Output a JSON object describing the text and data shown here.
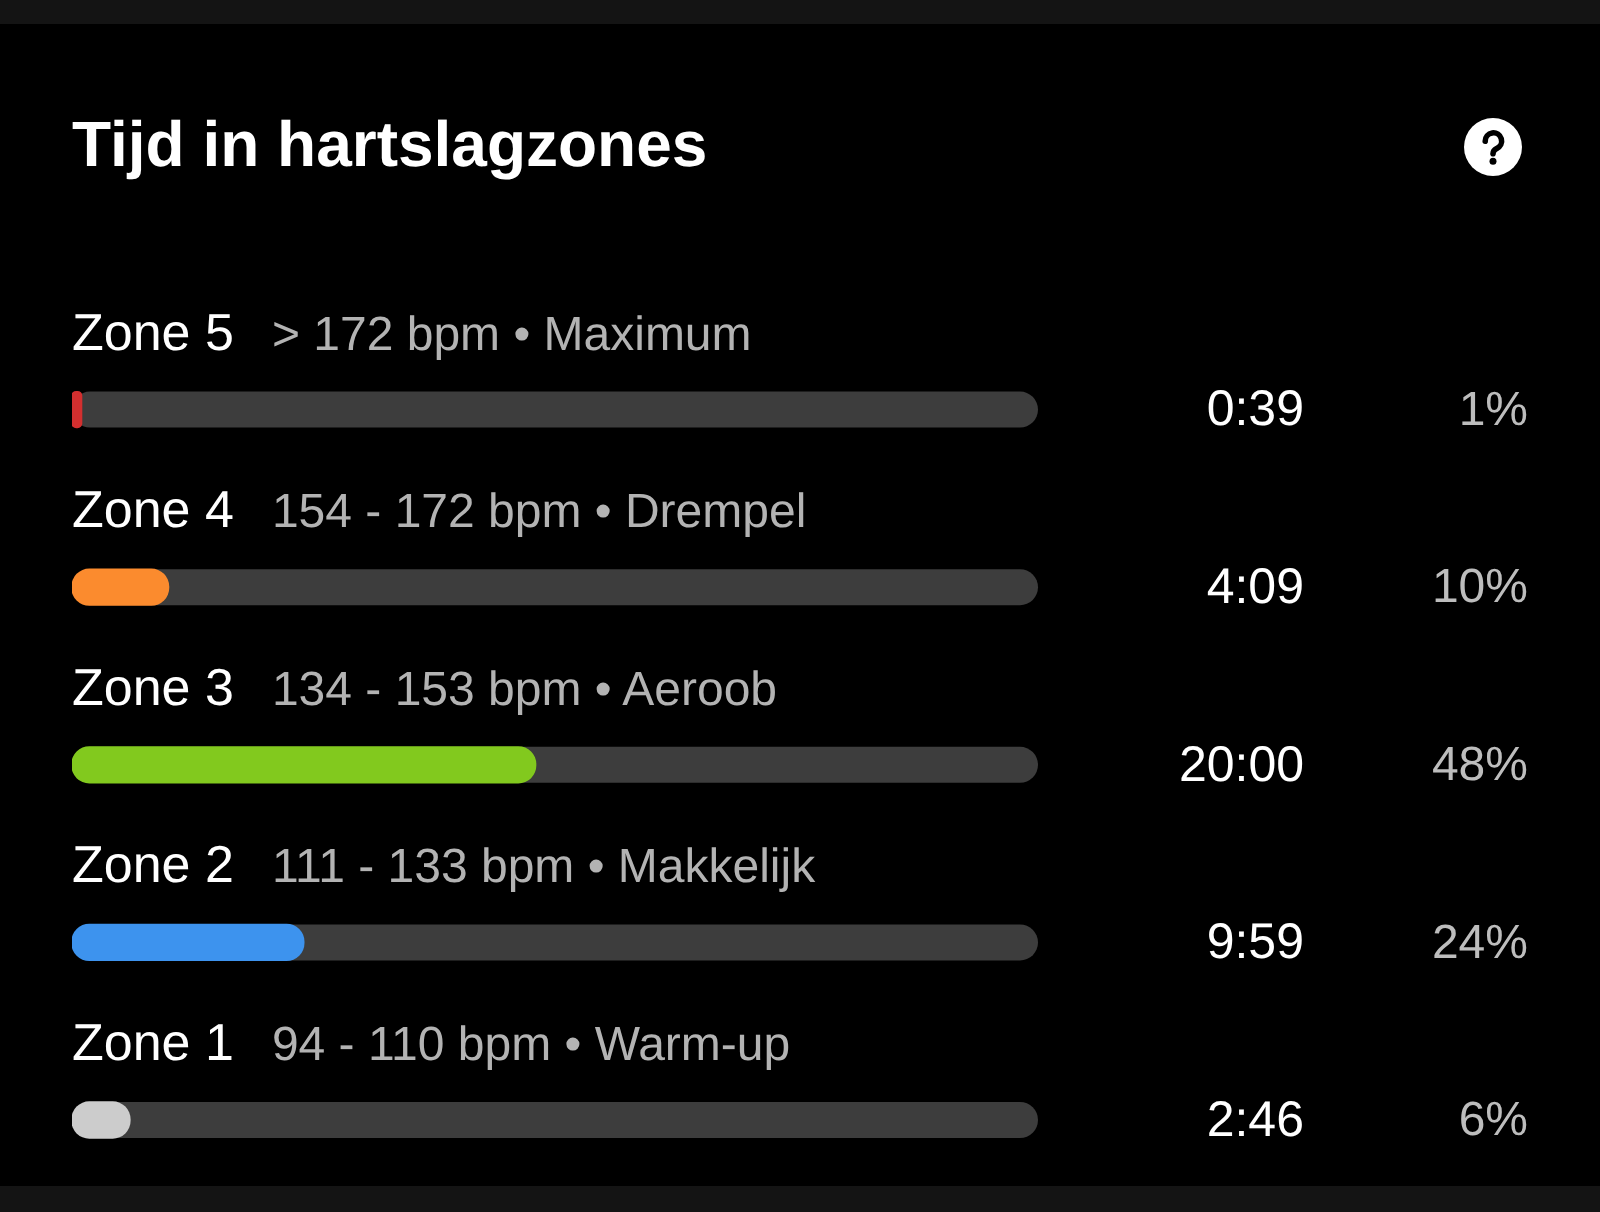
{
  "chart_data": {
    "type": "bar",
    "orientation": "horizontal",
    "title": "Tijd in hartslagzones",
    "categories": [
      "Zone 5",
      "Zone 4",
      "Zone 3",
      "Zone 2",
      "Zone 1"
    ],
    "values": [
      1,
      10,
      48,
      24,
      6
    ],
    "colors": [
      "#d32f2f",
      "#fb8b2e",
      "#82c91e",
      "#3d93ee",
      "#cccccc"
    ],
    "value_labels": [
      "1%",
      "10%",
      "48%",
      "24%",
      "6%"
    ],
    "xlim": [
      0,
      100
    ],
    "tick_labels": "y",
    "annotations": [
      "> 172 bpm • Maximum",
      "0:39",
      "154 - 172 bpm • Drempel",
      "4:09",
      "134 - 153 bpm • Aeroob",
      "20:00",
      "111 - 133 bpm • Makkelijk",
      "9:59",
      "94 - 110 bpm • Warm-up",
      "2:46"
    ]
  }
}
